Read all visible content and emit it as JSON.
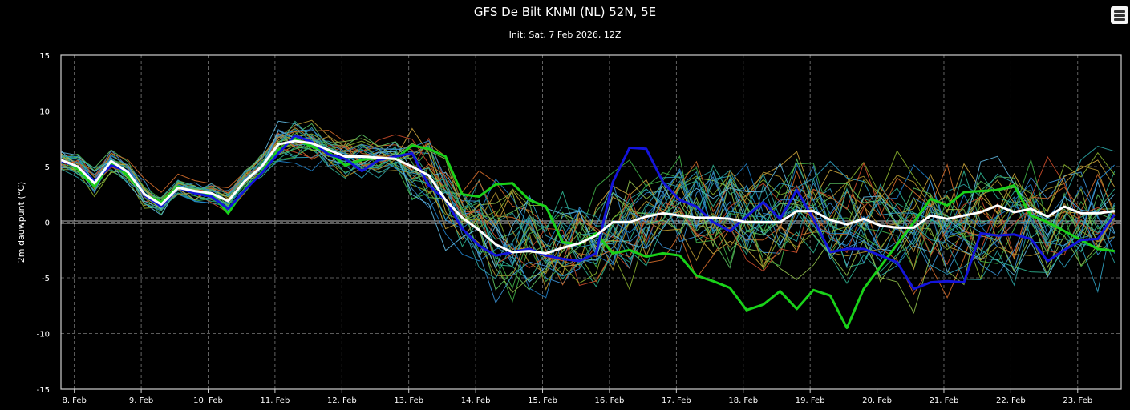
{
  "header": {
    "menu_icon": "hamburger-menu-icon"
  },
  "chart_data": {
    "type": "line",
    "title": "GFS De Bilt KNMI (NL) 52N, 5E",
    "subtitle": "Init: Sat, 7 Feb 2026, 12Z",
    "ylabel": "2m dauwpunt (°C)",
    "xlabel": "",
    "ylim": [
      -15,
      15
    ],
    "yticks": [
      15,
      10,
      5,
      0,
      -5,
      -10,
      -15
    ],
    "xlim": [
      7.8,
      23.65
    ],
    "xticks": [
      {
        "value": 8,
        "label": "8. Feb"
      },
      {
        "value": 9,
        "label": "9. Feb"
      },
      {
        "value": 10,
        "label": "10. Feb"
      },
      {
        "value": 11,
        "label": "11. Feb"
      },
      {
        "value": 12,
        "label": "12. Feb"
      },
      {
        "value": 13,
        "label": "13. Feb"
      },
      {
        "value": 14,
        "label": "14. Feb"
      },
      {
        "value": 15,
        "label": "15. Feb"
      },
      {
        "value": 16,
        "label": "16. Feb"
      },
      {
        "value": 17,
        "label": "17. Feb"
      },
      {
        "value": 18,
        "label": "18. Feb"
      },
      {
        "value": 19,
        "label": "19. Feb"
      },
      {
        "value": 20,
        "label": "20. Feb"
      },
      {
        "value": 21,
        "label": "21. Feb"
      },
      {
        "value": 22,
        "label": "22. Feb"
      },
      {
        "value": 23,
        "label": "23. Feb"
      }
    ],
    "grid": true,
    "zero_line": true,
    "highlight_series": [
      {
        "role": "green",
        "color": "#19d219",
        "x": [
          7.8,
          8.05,
          8.3,
          8.55,
          8.8,
          9.05,
          9.3,
          9.55,
          9.8,
          10.05,
          10.3,
          10.55,
          10.8,
          11.05,
          11.3,
          11.55,
          11.8,
          12.05,
          12.3,
          12.55,
          12.8,
          13.05,
          13.3,
          13.55,
          13.8,
          14.05,
          14.3,
          14.55,
          14.8,
          15.05,
          15.3,
          15.55,
          15.8,
          16.05,
          16.3,
          16.55,
          16.8,
          17.05,
          17.3,
          17.55,
          17.8,
          18.05,
          18.3,
          18.55,
          18.8,
          19.05,
          19.3,
          19.55,
          19.8,
          20.05,
          20.3,
          20.55,
          20.8,
          21.05,
          21.3,
          21.55,
          21.8,
          22.05,
          22.3,
          22.55,
          22.8,
          23.05,
          23.3,
          23.55
        ],
        "y": [
          5.6,
          4.8,
          3.2,
          5.4,
          4.2,
          2.5,
          1.8,
          3.2,
          2.6,
          2.5,
          0.8,
          3.0,
          4.5,
          6.5,
          7.5,
          6.8,
          6.3,
          5.1,
          5.6,
          5.8,
          5.7,
          6.9,
          6.6,
          5.9,
          2.5,
          2.3,
          3.4,
          3.5,
          2.0,
          1.4,
          -1.8,
          -2.0,
          -1.0,
          -2.8,
          -2.5,
          -3.1,
          -2.8,
          -3.0,
          -4.8,
          -5.3,
          -5.9,
          -7.9,
          -7.4,
          -6.2,
          -7.8,
          -6.1,
          -6.6,
          -9.5,
          -6.0,
          -4.0,
          -2.0,
          0.0,
          2.1,
          1.5,
          2.7,
          2.8,
          2.9,
          3.3,
          0.6,
          0.0,
          -0.8,
          -1.6,
          -2.4,
          -2.6
        ]
      },
      {
        "role": "blue",
        "color": "#1414dc",
        "x": [
          7.8,
          8.05,
          8.3,
          8.55,
          8.8,
          9.05,
          9.3,
          9.55,
          9.8,
          10.05,
          10.3,
          10.55,
          10.8,
          11.05,
          11.3,
          11.55,
          11.8,
          12.05,
          12.3,
          12.55,
          12.8,
          13.05,
          13.3,
          13.55,
          13.8,
          14.05,
          14.3,
          14.55,
          14.8,
          15.05,
          15.3,
          15.55,
          15.8,
          16.05,
          16.3,
          16.55,
          16.8,
          17.05,
          17.3,
          17.55,
          17.8,
          18.05,
          18.3,
          18.55,
          18.8,
          19.05,
          19.3,
          19.55,
          19.8,
          20.05,
          20.3,
          20.55,
          20.8,
          21.05,
          21.3,
          21.55,
          21.8,
          22.05,
          22.3,
          22.55,
          22.8,
          23.05,
          23.3,
          23.55
        ],
        "y": [
          5.5,
          5.0,
          3.7,
          5.1,
          4.6,
          2.4,
          1.4,
          3.1,
          2.6,
          2.3,
          1.2,
          2.9,
          4.4,
          6.2,
          7.8,
          7.2,
          6.1,
          5.7,
          4.6,
          5.6,
          5.9,
          6.2,
          3.3,
          2.0,
          -0.6,
          -2.1,
          -3.0,
          -2.7,
          -2.4,
          -3.0,
          -3.3,
          -3.5,
          -2.8,
          3.6,
          6.7,
          6.6,
          3.6,
          2.0,
          1.4,
          0.0,
          -0.8,
          0.5,
          1.8,
          0.3,
          2.9,
          0.3,
          -2.7,
          -2.4,
          -2.4,
          -3.0,
          -3.6,
          -6.0,
          -5.4,
          -5.3,
          -5.4,
          -1.0,
          -1.2,
          -1.1,
          -1.5,
          -3.5,
          -2.5,
          -1.6,
          -1.5,
          0.7
        ]
      },
      {
        "role": "mean",
        "color": "#ffffff",
        "x": [
          7.8,
          8.05,
          8.3,
          8.55,
          8.8,
          9.05,
          9.3,
          9.55,
          9.8,
          10.05,
          10.3,
          10.55,
          10.8,
          11.05,
          11.3,
          11.55,
          11.8,
          12.05,
          12.3,
          12.55,
          12.8,
          13.05,
          13.3,
          13.55,
          13.8,
          14.05,
          14.3,
          14.55,
          14.8,
          15.05,
          15.3,
          15.55,
          15.8,
          16.05,
          16.3,
          16.55,
          16.8,
          17.05,
          17.3,
          17.55,
          17.8,
          18.05,
          18.3,
          18.55,
          18.8,
          19.05,
          19.3,
          19.55,
          19.8,
          20.05,
          20.3,
          20.55,
          20.8,
          21.05,
          21.3,
          21.55,
          21.8,
          22.05,
          22.3,
          22.55,
          22.8,
          23.05,
          23.3,
          23.55
        ],
        "y": [
          5.6,
          5.0,
          3.5,
          5.5,
          4.5,
          2.5,
          1.6,
          3.1,
          2.8,
          2.6,
          1.9,
          3.7,
          5.0,
          7.0,
          7.3,
          7.1,
          6.5,
          5.9,
          5.9,
          5.8,
          5.7,
          5.0,
          4.2,
          2.0,
          0.4,
          -0.7,
          -2.0,
          -2.7,
          -2.6,
          -2.8,
          -2.3,
          -1.9,
          -1.2,
          0.0,
          0.0,
          0.5,
          0.8,
          0.6,
          0.4,
          0.4,
          0.3,
          0.0,
          0.0,
          0.0,
          1.0,
          1.0,
          0.2,
          -0.2,
          0.3,
          -0.3,
          -0.5,
          -0.5,
          0.6,
          0.3,
          0.6,
          0.9,
          1.5,
          0.9,
          1.2,
          0.5,
          1.4,
          0.8,
          0.8,
          1.0
        ]
      }
    ],
    "ensemble": {
      "member_count": 30,
      "colors": [
        "#3a8fd0",
        "#2eb08f",
        "#3fae46",
        "#88b02e",
        "#c9a23a",
        "#d06a2a",
        "#2f9fbf",
        "#5cc060",
        "#1f7fc8",
        "#8fbf4a",
        "#b39430",
        "#c74a2a",
        "#2aa0a0",
        "#60b8e0"
      ],
      "note": ""
    }
  }
}
